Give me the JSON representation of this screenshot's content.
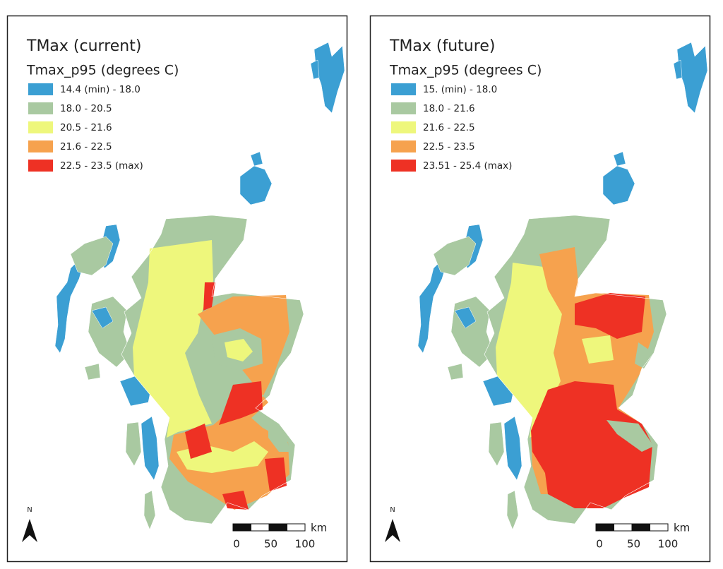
{
  "maps": [
    {
      "title": "TMax (current)",
      "legend_title": "Tmax_p95 (degrees C)",
      "legend": [
        {
          "label": "14.4 (min) - 18.0",
          "color": "#3b9fd3"
        },
        {
          "label": "18.0 - 20.5",
          "color": "#a9c9a1"
        },
        {
          "label": "20.5 - 21.6",
          "color": "#eef77c"
        },
        {
          "label": "21.6 - 22.5",
          "color": "#f6a24e"
        },
        {
          "label": "22.5 - 23.5 (max)",
          "color": "#ee3124"
        }
      ],
      "north": "N",
      "scale_unit": "km",
      "scale_labels": [
        0,
        50,
        100
      ]
    },
    {
      "title": "TMax (future)",
      "legend_title": "Tmax_p95 (degrees C)",
      "legend": [
        {
          "label": "15. (min) - 18.0",
          "color": "#3b9fd3"
        },
        {
          "label": "18.0 - 21.6",
          "color": "#a9c9a1"
        },
        {
          "label": "21.6 - 22.5",
          "color": "#eef77c"
        },
        {
          "label": "22.5 - 23.5",
          "color": "#f6a24e"
        },
        {
          "label": "23.51 - 25.4 (max)",
          "color": "#ee3124"
        }
      ],
      "north": "N",
      "scale_unit": "km",
      "scale_labels": [
        0,
        50,
        100
      ]
    }
  ]
}
